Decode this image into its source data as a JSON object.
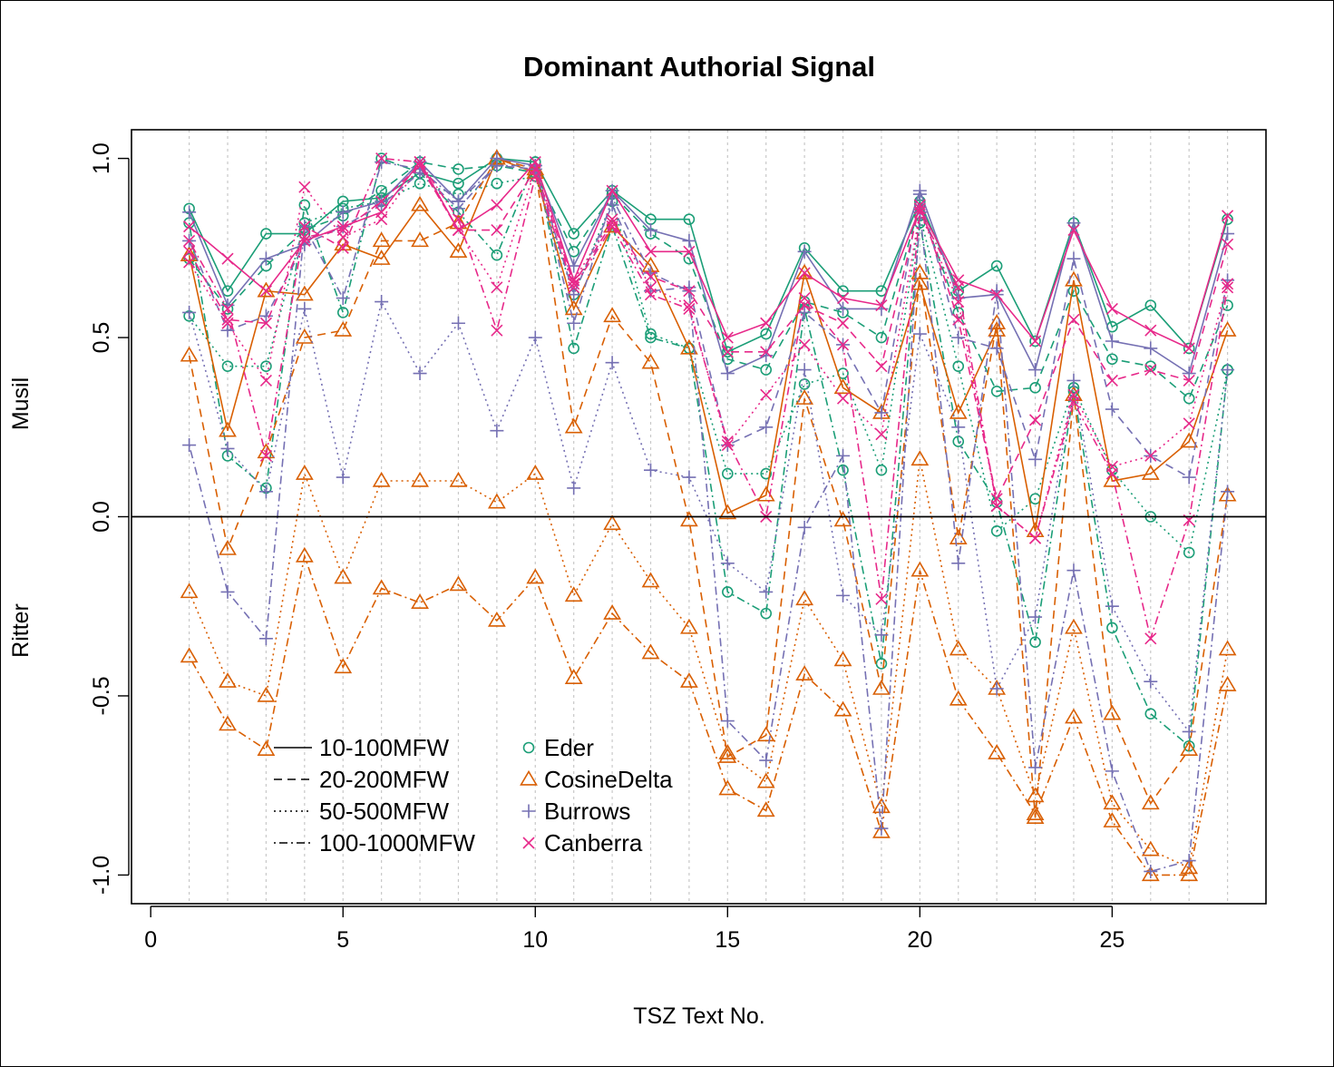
{
  "chart_data": {
    "type": "line",
    "title": "Dominant Authorial Signal",
    "xlabel": "TSZ Text No.",
    "ylabel_top": "Musil",
    "ylabel_bottom": "Ritter",
    "xlim": [
      -0.5,
      29
    ],
    "ylim": [
      -1.08,
      1.08
    ],
    "xticks": [
      0,
      5,
      10,
      15,
      20,
      25
    ],
    "yticks": [
      -1.0,
      -0.5,
      0.0,
      0.5,
      1.0
    ],
    "ytick_labels": [
      "-1.0",
      "-0.5",
      "0.0",
      "0.5",
      "1.0"
    ],
    "grid": "vertical dotted lines at x = 1..28",
    "reference_line": 0,
    "x": [
      1,
      2,
      3,
      4,
      5,
      6,
      7,
      8,
      9,
      10,
      11,
      12,
      13,
      14,
      15,
      16,
      17,
      18,
      19,
      20,
      21,
      22,
      23,
      24,
      25,
      26,
      27,
      28
    ],
    "legend_lines": [
      {
        "label": "10-100MFW",
        "dash": "solid"
      },
      {
        "label": "20-200MFW",
        "dash": "dashed"
      },
      {
        "label": "50-500MFW",
        "dash": "dotted"
      },
      {
        "label": "100-1000MFW",
        "dash": "dashdot"
      }
    ],
    "legend_methods": [
      {
        "label": "Eder",
        "marker": "circle",
        "color": "#1b9e77"
      },
      {
        "label": "CosineDelta",
        "marker": "triangle",
        "color": "#d95f02"
      },
      {
        "label": "Burrows",
        "marker": "plus",
        "color": "#7570b3"
      },
      {
        "label": "Canberra",
        "marker": "cross",
        "color": "#e7298a"
      }
    ],
    "series": [
      {
        "method": "Eder",
        "mfw": "10-100MFW",
        "values": [
          0.86,
          0.63,
          0.79,
          0.79,
          0.88,
          0.89,
          0.96,
          0.93,
          1.0,
          0.99,
          0.79,
          0.91,
          0.83,
          0.83,
          0.46,
          0.51,
          0.75,
          0.63,
          0.63,
          0.88,
          0.63,
          0.7,
          0.49,
          0.82,
          0.53,
          0.59,
          0.47,
          0.83
        ]
      },
      {
        "method": "Eder",
        "mfw": "20-200MFW",
        "values": [
          0.72,
          0.58,
          0.7,
          0.8,
          0.84,
          0.91,
          0.99,
          0.97,
          0.98,
          0.96,
          0.74,
          0.9,
          0.79,
          0.72,
          0.44,
          0.41,
          0.6,
          0.57,
          0.5,
          0.87,
          0.57,
          0.35,
          0.36,
          0.63,
          0.44,
          0.42,
          0.33,
          0.59
        ]
      },
      {
        "method": "Eder",
        "mfw": "50-500MFW",
        "values": [
          0.56,
          0.42,
          0.42,
          0.82,
          0.86,
          0.88,
          0.93,
          0.9,
          0.93,
          0.95,
          0.62,
          0.88,
          0.51,
          0.47,
          0.12,
          0.12,
          0.37,
          0.4,
          0.13,
          0.84,
          0.42,
          -0.04,
          0.05,
          0.36,
          0.13,
          0.0,
          -0.1,
          0.41
        ]
      },
      {
        "method": "Eder",
        "mfw": "100-1000MFW",
        "values": [
          0.82,
          0.17,
          0.08,
          0.87,
          0.57,
          1.0,
          0.96,
          0.85,
          0.73,
          0.99,
          0.47,
          0.81,
          0.5,
          0.47,
          -0.21,
          -0.27,
          0.58,
          0.13,
          -0.41,
          0.82,
          0.21,
          0.04,
          -0.35,
          0.35,
          -0.31,
          -0.55,
          -0.64,
          0.41
        ]
      },
      {
        "method": "CosineDelta",
        "mfw": "10-100MFW",
        "values": [
          0.73,
          0.24,
          0.63,
          0.62,
          0.76,
          0.72,
          0.87,
          0.74,
          1.0,
          0.96,
          0.58,
          0.81,
          0.7,
          0.47,
          0.01,
          0.06,
          0.68,
          0.36,
          0.29,
          0.65,
          0.29,
          0.52,
          -0.04,
          0.66,
          0.1,
          0.12,
          0.21,
          0.52
        ]
      },
      {
        "method": "CosineDelta",
        "mfw": "20-200MFW",
        "values": [
          0.45,
          -0.09,
          0.18,
          0.5,
          0.52,
          0.77,
          0.77,
          0.82,
          1.0,
          0.97,
          0.25,
          0.56,
          0.43,
          -0.01,
          -0.67,
          -0.61,
          0.33,
          -0.01,
          -0.48,
          0.68,
          -0.06,
          0.54,
          -0.84,
          0.34,
          -0.55,
          -0.8,
          -0.65,
          0.06
        ]
      },
      {
        "method": "CosineDelta",
        "mfw": "50-500MFW",
        "values": [
          -0.21,
          -0.46,
          -0.5,
          0.12,
          -0.17,
          0.1,
          0.1,
          0.1,
          0.04,
          0.12,
          -0.22,
          -0.02,
          -0.18,
          -0.31,
          -0.66,
          -0.74,
          -0.23,
          -0.4,
          -0.81,
          0.16,
          -0.37,
          -0.48,
          -0.78,
          -0.31,
          -0.8,
          -0.93,
          -0.98,
          -0.37
        ]
      },
      {
        "method": "CosineDelta",
        "mfw": "100-1000MFW",
        "values": [
          -0.39,
          -0.58,
          -0.65,
          -0.11,
          -0.42,
          -0.2,
          -0.24,
          -0.19,
          -0.29,
          -0.17,
          -0.45,
          -0.27,
          -0.38,
          -0.46,
          -0.76,
          -0.82,
          -0.44,
          -0.54,
          -0.88,
          -0.15,
          -0.51,
          -0.66,
          -0.83,
          -0.56,
          -0.85,
          -1.0,
          -1.0,
          -0.47
        ]
      },
      {
        "method": "Burrows",
        "mfw": "10-100MFW",
        "values": [
          0.85,
          0.59,
          0.72,
          0.76,
          0.85,
          0.88,
          0.99,
          0.88,
          1.0,
          0.98,
          0.7,
          0.91,
          0.8,
          0.77,
          0.4,
          0.45,
          0.74,
          0.58,
          0.58,
          0.91,
          0.61,
          0.62,
          0.41,
          0.82,
          0.49,
          0.47,
          0.4,
          0.79
        ]
      },
      {
        "method": "Burrows",
        "mfw": "20-200MFW",
        "values": [
          0.77,
          0.52,
          0.56,
          0.76,
          0.81,
          0.87,
          0.96,
          0.86,
          0.98,
          0.97,
          0.62,
          0.87,
          0.63,
          0.64,
          0.2,
          0.25,
          0.57,
          0.48,
          0.29,
          0.9,
          0.5,
          0.47,
          0.16,
          0.72,
          0.3,
          0.17,
          0.11,
          0.66
        ]
      },
      {
        "method": "Burrows",
        "mfw": "50-500MFW",
        "values": [
          0.57,
          0.19,
          0.07,
          0.58,
          0.11,
          0.6,
          0.4,
          0.54,
          0.24,
          0.5,
          0.08,
          0.43,
          0.13,
          0.11,
          -0.13,
          -0.21,
          0.41,
          -0.22,
          -0.33,
          0.51,
          0.25,
          -0.48,
          -0.28,
          0.38,
          -0.25,
          -0.46,
          -0.6,
          0.41
        ]
      },
      {
        "method": "Burrows",
        "mfw": "100-1000MFW",
        "values": [
          0.2,
          -0.21,
          -0.34,
          0.81,
          0.61,
          0.99,
          0.97,
          0.88,
          0.98,
          0.98,
          0.54,
          0.89,
          0.68,
          0.63,
          -0.57,
          -0.68,
          -0.03,
          0.17,
          -0.87,
          0.85,
          -0.13,
          0.63,
          -0.7,
          -0.15,
          -0.71,
          -0.99,
          -0.96,
          0.07
        ]
      },
      {
        "method": "Canberra",
        "mfw": "10-100MFW",
        "values": [
          0.81,
          0.72,
          0.63,
          0.77,
          0.81,
          0.85,
          0.99,
          0.8,
          0.87,
          0.99,
          0.66,
          0.91,
          0.74,
          0.74,
          0.5,
          0.54,
          0.68,
          0.61,
          0.59,
          0.86,
          0.66,
          0.62,
          0.49,
          0.8,
          0.58,
          0.52,
          0.47,
          0.84
        ]
      },
      {
        "method": "Canberra",
        "mfw": "20-200MFW",
        "values": [
          0.74,
          0.55,
          0.54,
          0.78,
          0.8,
          0.88,
          0.98,
          0.8,
          0.8,
          0.97,
          0.65,
          0.82,
          0.67,
          0.63,
          0.46,
          0.46,
          0.59,
          0.54,
          0.42,
          0.87,
          0.55,
          0.05,
          0.27,
          0.55,
          0.38,
          0.41,
          0.38,
          0.76
        ]
      },
      {
        "method": "Canberra",
        "mfw": "50-500MFW",
        "values": [
          0.71,
          0.54,
          0.38,
          0.92,
          0.78,
          0.83,
          0.98,
          0.8,
          0.64,
          0.97,
          0.66,
          0.83,
          0.64,
          0.59,
          0.2,
          0.34,
          0.48,
          0.33,
          0.23,
          0.85,
          0.6,
          0.03,
          -0.06,
          0.34,
          0.14,
          0.17,
          0.26,
          0.65
        ]
      },
      {
        "method": "Canberra",
        "mfw": "100-1000MFW",
        "values": [
          0.77,
          0.58,
          0.17,
          0.81,
          0.75,
          1.0,
          0.99,
          0.83,
          0.52,
          0.95,
          0.64,
          0.81,
          0.62,
          0.58,
          0.21,
          0.0,
          0.61,
          0.48,
          -0.23,
          0.85,
          0.64,
          0.03,
          -0.06,
          0.32,
          0.12,
          -0.34,
          -0.01,
          0.64
        ]
      }
    ]
  }
}
